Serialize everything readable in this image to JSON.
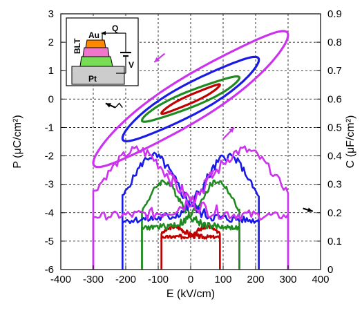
{
  "chart_data": {
    "type": "line",
    "title": "",
    "xlabel": "E (kV/cm)",
    "ylabel_left": "P (μC/cm²)",
    "ylabel_right": "C (μF/cm²)",
    "xlim": [
      -400,
      400
    ],
    "ylim_left": [
      -6,
      3
    ],
    "ylim_right": [
      0,
      0.9
    ],
    "x_ticks": [
      -400,
      -300,
      -200,
      -100,
      0,
      100,
      200,
      300,
      400
    ],
    "y_left_ticks": [
      -6,
      -5,
      -4,
      -3,
      -2,
      -1,
      0,
      1,
      2,
      3
    ],
    "y_right_ticks": [
      "0",
      "0.1",
      "0.2",
      "0.3",
      "0.4",
      "0.5",
      "0.6",
      "0.7",
      "0.8",
      "0.9"
    ],
    "grid": true,
    "legend": "none",
    "hysteresis_loops": [
      {
        "color": "#c00000",
        "E_max": 90,
        "P_max": 0.5,
        "P_r": 0.15
      },
      {
        "color": "#1f8a1f",
        "E_max": 150,
        "P_max": 0.75,
        "P_r": 0.3
      },
      {
        "color": "#1a1ae6",
        "E_max": 210,
        "P_max": 1.38,
        "P_r": 0.6
      },
      {
        "color": "#cc33ee",
        "E_max": 300,
        "P_max": 2.25,
        "P_r": 0.9
      }
    ],
    "capacitance_curves": [
      {
        "color": "#c00000",
        "E_max": 90,
        "C_peak": 0.15,
        "C_end": 0.11
      },
      {
        "color": "#1f8a1f",
        "E_max": 150,
        "C_peak": 0.31,
        "C_end": 0.11
      },
      {
        "color": "#1a1ae6",
        "E_max": 210,
        "C_peak": 0.4,
        "C_end": 0.13
      },
      {
        "color": "#cc33ee",
        "E_max": 300,
        "C_peak": 0.42,
        "C_end": 0.16
      }
    ],
    "inset": {
      "labels": {
        "blt": "BLT",
        "au": "Au",
        "pt": "Pt",
        "q": "Q",
        "v": "V"
      },
      "colors": {
        "au": "#ff8800",
        "layer2": "#ee77cc",
        "layer3": "#77dd55",
        "pt": "#cccccc"
      }
    }
  }
}
